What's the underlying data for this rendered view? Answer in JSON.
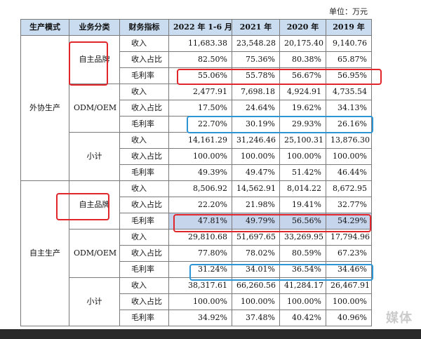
{
  "unit_label": "单位：万元",
  "headers": [
    "生产模式",
    "业务分类",
    "财务指标",
    "2022 年 1-6 月",
    "2021 年",
    "2020 年",
    "2019 年"
  ],
  "modes": [
    {
      "name": "外协生产",
      "groups": [
        {
          "name": "自主品牌",
          "rows": [
            {
              "metric": "收入",
              "values": [
                "11,683.38",
                "23,548.28",
                "20,175.40",
                "9,140.76"
              ]
            },
            {
              "metric": "收入占比",
              "values": [
                "82.50%",
                "75.36%",
                "80.38%",
                "65.87%"
              ]
            },
            {
              "metric": "毛利率",
              "values": [
                "55.06%",
                "55.78%",
                "56.67%",
                "56.95%"
              ]
            }
          ]
        },
        {
          "name": "ODM/OEM",
          "rows": [
            {
              "metric": "收入",
              "values": [
                "2,477.91",
                "7,698.18",
                "4,924.91",
                "4,735.54"
              ]
            },
            {
              "metric": "收入占比",
              "values": [
                "17.50%",
                "24.64%",
                "19.62%",
                "34.13%"
              ]
            },
            {
              "metric": "毛利率",
              "values": [
                "22.70%",
                "30.19%",
                "29.93%",
                "26.16%"
              ]
            }
          ]
        },
        {
          "name": "小计",
          "rows": [
            {
              "metric": "收入",
              "values": [
                "14,161.29",
                "31,246.46",
                "25,100.31",
                "13,876.30"
              ]
            },
            {
              "metric": "收入占比",
              "values": [
                "100.00%",
                "100.00%",
                "100.00%",
                "100.00%"
              ]
            },
            {
              "metric": "毛利率",
              "values": [
                "49.39%",
                "49.47%",
                "51.42%",
                "46.44%"
              ]
            }
          ]
        }
      ]
    },
    {
      "name": "自主生产",
      "groups": [
        {
          "name": "自主品牌",
          "rows": [
            {
              "metric": "收入",
              "values": [
                "8,506.92",
                "14,562.91",
                "8,014.22",
                "8,672.95"
              ]
            },
            {
              "metric": "收入占比",
              "values": [
                "22.20%",
                "21.98%",
                "19.41%",
                "32.77%"
              ]
            },
            {
              "metric": "毛利率",
              "values": [
                "47.81%",
                "49.79%",
                "56.56%",
                "54.29%"
              ]
            }
          ]
        },
        {
          "name": "ODM/OEM",
          "rows": [
            {
              "metric": "收入",
              "values": [
                "29,810.68",
                "51,697.65",
                "33,269.95",
                "17,794.96"
              ]
            },
            {
              "metric": "收入占比",
              "values": [
                "77.80%",
                "78.02%",
                "80.59%",
                "67.23%"
              ]
            },
            {
              "metric": "毛利率",
              "values": [
                "31.24%",
                "34.01%",
                "36.54%",
                "34.46%"
              ]
            }
          ]
        },
        {
          "name": "小计",
          "rows": [
            {
              "metric": "收入",
              "values": [
                "38,317.61",
                "66,260.56",
                "41,284.17",
                "26,467.91"
              ]
            },
            {
              "metric": "收入占比",
              "values": [
                "100.00%",
                "100.00%",
                "100.00%",
                "100.00%"
              ]
            },
            {
              "metric": "毛利率",
              "values": [
                "34.92%",
                "37.48%",
                "40.42%",
                "40.96%"
              ]
            }
          ]
        }
      ]
    }
  ],
  "watermark": "媒体",
  "colors": {
    "header_bg": "#c9dcf0",
    "highlight_bg": "#c6d4ec",
    "red_box": "#e0262b",
    "blue_box": "#2b95d6"
  }
}
